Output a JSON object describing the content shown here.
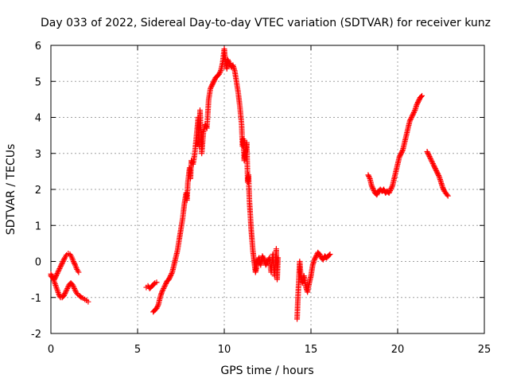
{
  "chart_data": {
    "type": "scatter",
    "title": "Day 033 of 2022, Sidereal Day-to-day VTEC variation (SDTVAR) for receiver kunz",
    "xlabel": "GPS time / hours",
    "ylabel": "SDTVAR / TECUs",
    "xlim": [
      0,
      25
    ],
    "ylim": [
      -2,
      6
    ],
    "x_ticks": [
      0,
      5,
      10,
      15,
      20,
      25
    ],
    "y_ticks": [
      -2,
      -1,
      0,
      1,
      2,
      3,
      4,
      5,
      6
    ],
    "x_tick_labels": [
      "0",
      "5",
      "10",
      "15",
      "20",
      "25"
    ],
    "y_tick_labels": [
      "-2",
      "-1",
      "0",
      "1",
      "2",
      "3",
      "4",
      "5",
      "6"
    ],
    "grid": true,
    "marker": "plus",
    "color": "#ff0000",
    "segments": [
      {
        "x": [
          0.0,
          0.1,
          0.2,
          0.3,
          0.4,
          0.5,
          0.6,
          0.7,
          0.8,
          0.9,
          1.0,
          1.1,
          1.2,
          1.3,
          1.4,
          1.5,
          1.6
        ],
        "y": [
          -0.4,
          -0.45,
          -0.5,
          -0.4,
          -0.3,
          -0.2,
          -0.1,
          0.0,
          0.1,
          0.18,
          0.22,
          0.2,
          0.12,
          0.0,
          -0.1,
          -0.22,
          -0.3
        ]
      },
      {
        "x": [
          0.0,
          0.15,
          0.3,
          0.45,
          0.55,
          0.65,
          0.75,
          0.85,
          0.95,
          1.05,
          1.15,
          1.25,
          1.35,
          1.45,
          1.55,
          1.65,
          1.75,
          1.85,
          1.95,
          2.05,
          2.15
        ],
        "y": [
          -0.35,
          -0.5,
          -0.7,
          -0.9,
          -1.0,
          -1.0,
          -0.95,
          -0.85,
          -0.75,
          -0.65,
          -0.6,
          -0.65,
          -0.75,
          -0.85,
          -0.92,
          -0.95,
          -1.0,
          -1.02,
          -1.05,
          -1.08,
          -1.12
        ]
      },
      {
        "x": [
          5.5,
          5.6,
          5.7,
          5.8,
          5.9,
          6.0,
          6.1
        ],
        "y": [
          -0.72,
          -0.68,
          -0.75,
          -0.7,
          -0.65,
          -0.6,
          -0.58
        ]
      },
      {
        "x": [
          5.9,
          6.0,
          6.1,
          6.2,
          6.3,
          6.4,
          6.5,
          6.6,
          6.7,
          6.8,
          6.9,
          7.0,
          7.1,
          7.2,
          7.3,
          7.4,
          7.5,
          7.6,
          7.7,
          7.8,
          7.85,
          7.9,
          8.0,
          8.05,
          8.1,
          8.2,
          8.3,
          8.4,
          8.5,
          8.55,
          8.6,
          8.7,
          8.8,
          8.9,
          9.0,
          9.1,
          9.2,
          9.3,
          9.4,
          9.5,
          9.6,
          9.7,
          9.8,
          9.9,
          10.0,
          10.05,
          10.1,
          10.15,
          10.2,
          10.3,
          10.4,
          10.5,
          10.6,
          10.7,
          10.8,
          10.9,
          11.0,
          11.05,
          11.1,
          11.15,
          11.2,
          11.3,
          11.35,
          11.4,
          11.45,
          11.5,
          11.55,
          11.6,
          11.65,
          11.7,
          11.75,
          11.8,
          11.85,
          11.9
        ],
        "y": [
          -1.4,
          -1.35,
          -1.3,
          -1.2,
          -1.0,
          -0.85,
          -0.75,
          -0.65,
          -0.55,
          -0.5,
          -0.4,
          -0.3,
          -0.1,
          0.1,
          0.3,
          0.6,
          0.9,
          1.2,
          1.6,
          1.9,
          1.7,
          2.2,
          2.6,
          2.3,
          2.8,
          2.7,
          3.0,
          3.5,
          4.0,
          3.2,
          4.2,
          3.0,
          3.6,
          3.8,
          3.7,
          4.5,
          4.8,
          4.9,
          5.0,
          5.1,
          5.15,
          5.2,
          5.3,
          5.5,
          5.9,
          5.65,
          5.5,
          5.35,
          5.6,
          5.5,
          5.4,
          5.45,
          5.3,
          5.0,
          4.7,
          4.3,
          3.8,
          3.2,
          3.4,
          2.8,
          3.0,
          3.3,
          2.2,
          2.4,
          1.7,
          1.3,
          0.9,
          0.6,
          0.3,
          0.1,
          -0.1,
          -0.3,
          -0.2,
          0.0
        ]
      },
      {
        "x": [
          11.9,
          12.0,
          12.1,
          12.2,
          12.3,
          12.4,
          12.5,
          12.6,
          12.7,
          12.8,
          12.9,
          13.0,
          13.05,
          13.1
        ],
        "y": [
          0.0,
          0.1,
          -0.1,
          0.15,
          0.05,
          -0.1,
          0.0,
          0.1,
          -0.3,
          0.2,
          -0.4,
          0.35,
          -0.5,
          0.1
        ]
      },
      {
        "x": [
          14.2,
          14.25,
          14.3,
          14.35,
          14.4,
          14.5,
          14.6,
          14.7,
          14.8,
          14.9,
          15.0,
          15.1,
          15.2,
          15.3,
          15.4,
          15.5,
          15.6,
          15.7,
          15.8,
          15.9,
          16.0,
          16.1
        ],
        "y": [
          -1.6,
          -1.0,
          -0.5,
          0.0,
          -0.3,
          -0.6,
          -0.4,
          -0.7,
          -0.85,
          -0.6,
          -0.4,
          -0.1,
          0.05,
          0.15,
          0.25,
          0.2,
          0.1,
          0.05,
          0.15,
          0.1,
          0.15,
          0.2
        ]
      },
      {
        "x": [
          18.3,
          18.4,
          18.5,
          18.6,
          18.7,
          18.8,
          18.9,
          19.0,
          19.1,
          19.2,
          19.3,
          19.4,
          19.5,
          19.6,
          19.7,
          19.8,
          19.9,
          20.0,
          20.1,
          20.2,
          20.3,
          20.4,
          20.5,
          20.6,
          20.7,
          20.8,
          20.9,
          21.0,
          21.1,
          21.2,
          21.3,
          21.4
        ],
        "y": [
          2.4,
          2.3,
          2.1,
          2.0,
          1.9,
          1.85,
          1.95,
          2.0,
          1.95,
          2.0,
          1.9,
          1.95,
          1.9,
          2.0,
          2.1,
          2.3,
          2.5,
          2.7,
          2.9,
          3.0,
          3.1,
          3.3,
          3.5,
          3.7,
          3.9,
          4.0,
          4.1,
          4.2,
          4.35,
          4.45,
          4.55,
          4.6
        ]
      },
      {
        "x": [
          21.7,
          21.8,
          21.9,
          22.0,
          22.1,
          22.2,
          22.3,
          22.4,
          22.5,
          22.6,
          22.7,
          22.8,
          22.9
        ],
        "y": [
          3.05,
          2.95,
          2.85,
          2.75,
          2.65,
          2.55,
          2.45,
          2.35,
          2.2,
          2.05,
          1.95,
          1.88,
          1.82
        ]
      }
    ]
  }
}
